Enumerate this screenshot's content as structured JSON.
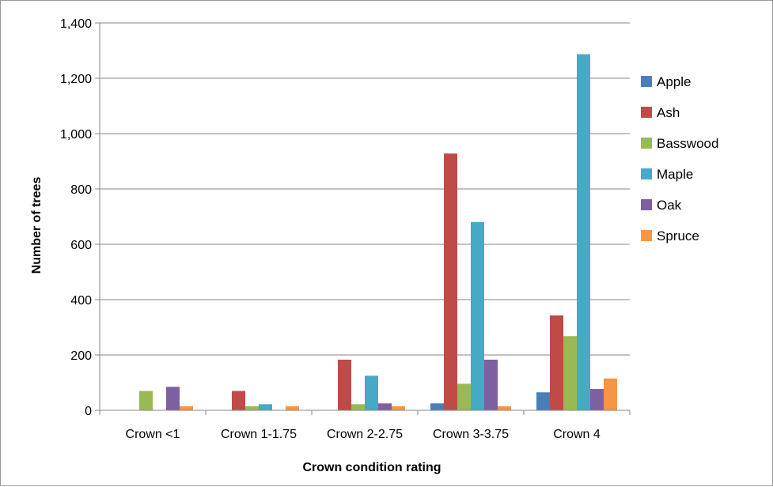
{
  "chart_data": {
    "type": "bar",
    "title": "",
    "xlabel": "Crown condition rating",
    "ylabel": "Number of trees",
    "categories": [
      "Crown <1",
      "Crown 1-1.75",
      "Crown 2-2.75",
      "Crown 3-3.75",
      "Crown 4"
    ],
    "ylim": [
      0,
      1400
    ],
    "yticks": [
      0,
      200,
      400,
      600,
      800,
      1000,
      1200,
      1400
    ],
    "ytick_labels": [
      "0",
      "200",
      "400",
      "600",
      "800",
      "1,000",
      "1,200",
      "1,400"
    ],
    "grid": true,
    "legend_position": "right",
    "series": [
      {
        "name": "Apple",
        "color": "#4a7ebb",
        "values": [
          0,
          0,
          0,
          25,
          65
        ]
      },
      {
        "name": "Ash",
        "color": "#be4b48",
        "values": [
          0,
          70,
          183,
          928,
          343
        ]
      },
      {
        "name": "Basswood",
        "color": "#98b954",
        "values": [
          70,
          15,
          22,
          96,
          268
        ]
      },
      {
        "name": "Maple",
        "color": "#46aac5",
        "values": [
          0,
          22,
          125,
          680,
          1287
        ]
      },
      {
        "name": "Oak",
        "color": "#7d60a0",
        "values": [
          85,
          0,
          25,
          183,
          77
        ]
      },
      {
        "name": "Spruce",
        "color": "#f69545",
        "values": [
          15,
          15,
          15,
          15,
          115
        ]
      }
    ]
  }
}
